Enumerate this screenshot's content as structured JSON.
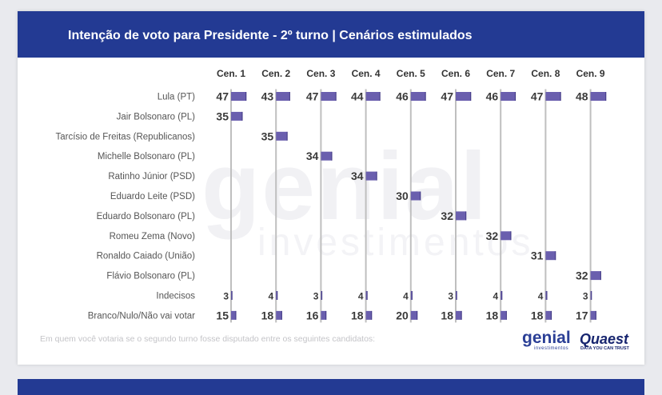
{
  "title": "Intenção de voto para Presidente - 2º turno | Cenários estimulados",
  "footnote": "Em quem você votaria se o segundo turno fosse disputado entre os seguintes candidatos:",
  "watermark": {
    "main": "genial",
    "sub": "investimentos"
  },
  "logos": {
    "genial": "genial",
    "genial_sub": "investimentos",
    "quaest": "Quaest",
    "quaest_sub": "DATA YOU CAN TRUST"
  },
  "colors": {
    "header": "#233a93",
    "bar": "#6a5fae",
    "bar_edge": "#3c3480",
    "axis": "#bfbfbf",
    "label": "#555555",
    "value": "#3a3a3a"
  },
  "chart_data": {
    "type": "bar",
    "title": "Intenção de voto para Presidente - 2º turno | Cenários estimulados",
    "unit": "%",
    "categories": [
      "Lula (PT)",
      "Jair Bolsonaro (PL)",
      "Tarcísio de Freitas (Republicanos)",
      "Michelle Bolsonaro (PL)",
      "Ratinho Júnior (PSD)",
      "Eduardo Leite (PSD)",
      "Eduardo Bolsonaro (PL)",
      "Romeu Zema (Novo)",
      "Ronaldo Caiado (União)",
      "Flávio Bolsonaro (PL)",
      "Indecisos",
      "Branco/Nulo/Não vai votar"
    ],
    "series": [
      {
        "name": "Cen. 1",
        "values": [
          47,
          35,
          null,
          null,
          null,
          null,
          null,
          null,
          null,
          null,
          3,
          15
        ]
      },
      {
        "name": "Cen. 2",
        "values": [
          43,
          null,
          35,
          null,
          null,
          null,
          null,
          null,
          null,
          null,
          4,
          18
        ]
      },
      {
        "name": "Cen. 3",
        "values": [
          47,
          null,
          null,
          34,
          null,
          null,
          null,
          null,
          null,
          null,
          3,
          16
        ]
      },
      {
        "name": "Cen. 4",
        "values": [
          44,
          null,
          null,
          null,
          34,
          null,
          null,
          null,
          null,
          null,
          4,
          18
        ]
      },
      {
        "name": "Cen. 5",
        "values": [
          46,
          null,
          null,
          null,
          null,
          30,
          null,
          null,
          null,
          null,
          4,
          20
        ]
      },
      {
        "name": "Cen. 6",
        "values": [
          47,
          null,
          null,
          null,
          null,
          null,
          32,
          null,
          null,
          null,
          3,
          18
        ]
      },
      {
        "name": "Cen. 7",
        "values": [
          46,
          null,
          null,
          null,
          null,
          null,
          null,
          32,
          null,
          null,
          4,
          18
        ]
      },
      {
        "name": "Cen. 8",
        "values": [
          47,
          null,
          null,
          null,
          null,
          null,
          null,
          null,
          31,
          null,
          4,
          18
        ]
      },
      {
        "name": "Cen. 9",
        "values": [
          48,
          null,
          null,
          null,
          null,
          null,
          null,
          null,
          null,
          32,
          3,
          17
        ]
      }
    ],
    "xlim": [
      0,
      100
    ],
    "grid": false,
    "legend": "none"
  }
}
